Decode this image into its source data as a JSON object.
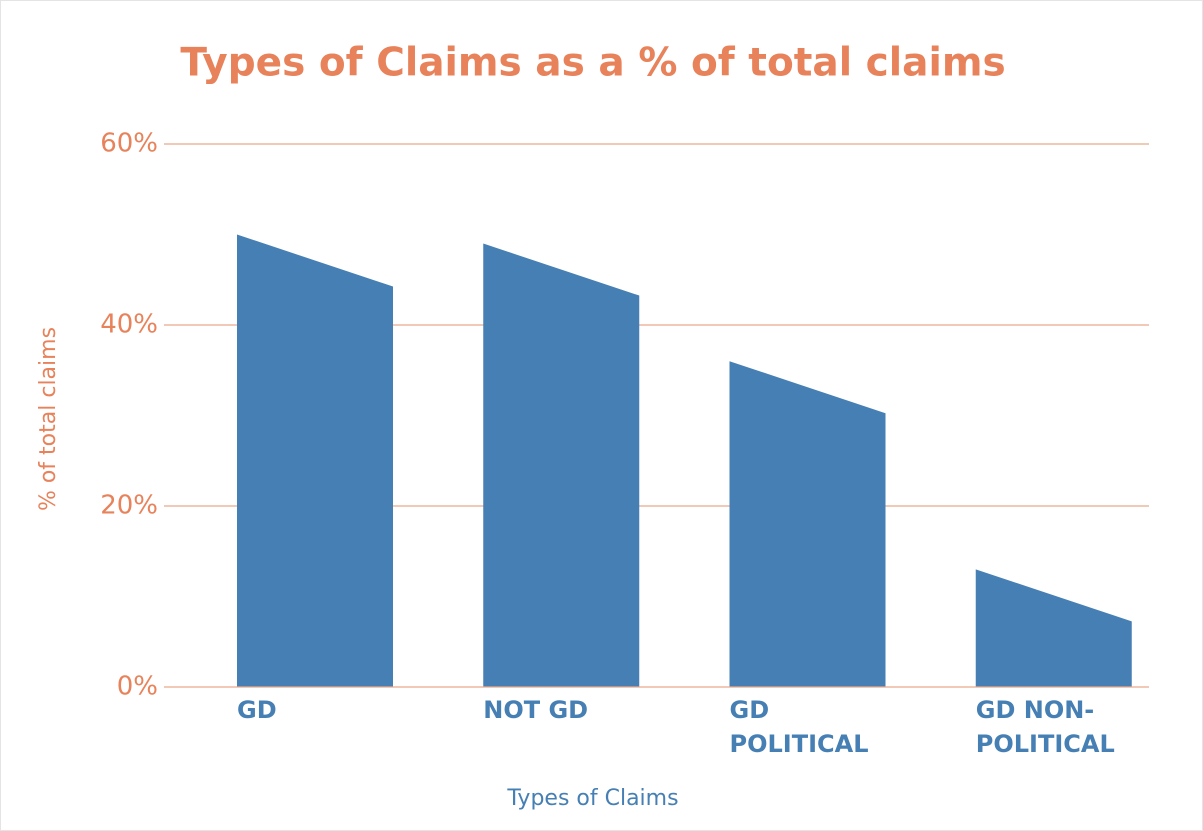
{
  "chart_data": {
    "type": "bar",
    "title": "Types of Claims as a % of total claims",
    "x_label": "Types of Claims",
    "y_label": "% of total claims",
    "categories": [
      "GD",
      "NOT GD",
      "GD POLITICAL",
      "GD NON-POLITICAL"
    ],
    "values": [
      50,
      49,
      36,
      13
    ],
    "color": "#467fb3",
    "ylim": [
      0,
      60
    ],
    "yticks": [
      {
        "value": 0,
        "label": "0%"
      },
      {
        "value": 20,
        "label": "20%"
      },
      {
        "value": 40,
        "label": "40%"
      },
      {
        "value": 60,
        "label": "60%"
      }
    ],
    "grid": true
  }
}
